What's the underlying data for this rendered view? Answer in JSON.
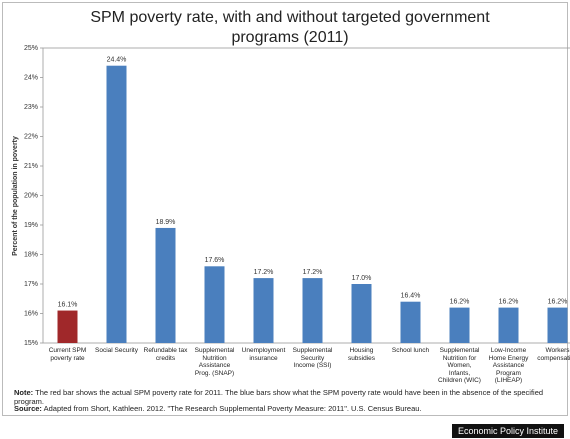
{
  "chart_data": {
    "type": "bar",
    "title": "SPM poverty rate, with and without targeted government programs (2011)",
    "y_label": "Percent of the population in poverty",
    "categories": [
      "Current SPM\npoverty rate",
      "Social Security",
      "Refundable tax\ncredits",
      "Supplemental\nNutrition\nAssistance\nProg. (SNAP)",
      "Unemployment\ninsurance",
      "Supplemental\nSecurity\nIncome (SSI)",
      "Housing\nsubsidies",
      "School lunch",
      "Supplemental\nNutrition for\nWomen,\nInfants,\nChildren (WIC)",
      "Low-Income\nHome Energy\nAssistance\nProgram\n(LIHEAP)",
      "Workers\ncompensation"
    ],
    "values": [
      16.1,
      24.4,
      18.9,
      17.6,
      17.2,
      17.2,
      17.0,
      16.4,
      16.2,
      16.2,
      16.2
    ],
    "value_labels": [
      "16.1%",
      "24.4%",
      "18.9%",
      "17.6%",
      "17.2%",
      "17.2%",
      "17.0%",
      "16.4%",
      "16.2%",
      "16.2%",
      "16.2%"
    ],
    "colors": [
      "#a0282a",
      "#4a7fbe",
      "#4a7fbe",
      "#4a7fbe",
      "#4a7fbe",
      "#4a7fbe",
      "#4a7fbe",
      "#4a7fbe",
      "#4a7fbe",
      "#4a7fbe",
      "#4a7fbe"
    ],
    "ylim": [
      15,
      25
    ],
    "yticks": [
      {
        "value": 15,
        "label": "15%"
      },
      {
        "value": 16,
        "label": "16%"
      },
      {
        "value": 17,
        "label": "17%"
      },
      {
        "value": 18,
        "label": "18%"
      },
      {
        "value": 19,
        "label": "19%"
      },
      {
        "value": 20,
        "label": "20%"
      },
      {
        "value": 21,
        "label": "21%"
      },
      {
        "value": 22,
        "label": "22%"
      },
      {
        "value": 23,
        "label": "23%"
      },
      {
        "value": 24,
        "label": "24%"
      },
      {
        "value": 25,
        "label": "25%"
      }
    ],
    "grid": false,
    "note_label": "Note:",
    "note": "The red bar shows the actual SPM poverty rate for 2011. The blue bars show what the SPM poverty rate would have been in the absence of the specified program.",
    "source_label": "Source:",
    "source": "Adapted from Short, Kathleen. 2012. \"The Research Supplemental Poverty Measure: 2011\". U.S. Census Bureau.",
    "credit": "Economic Policy Institute"
  }
}
